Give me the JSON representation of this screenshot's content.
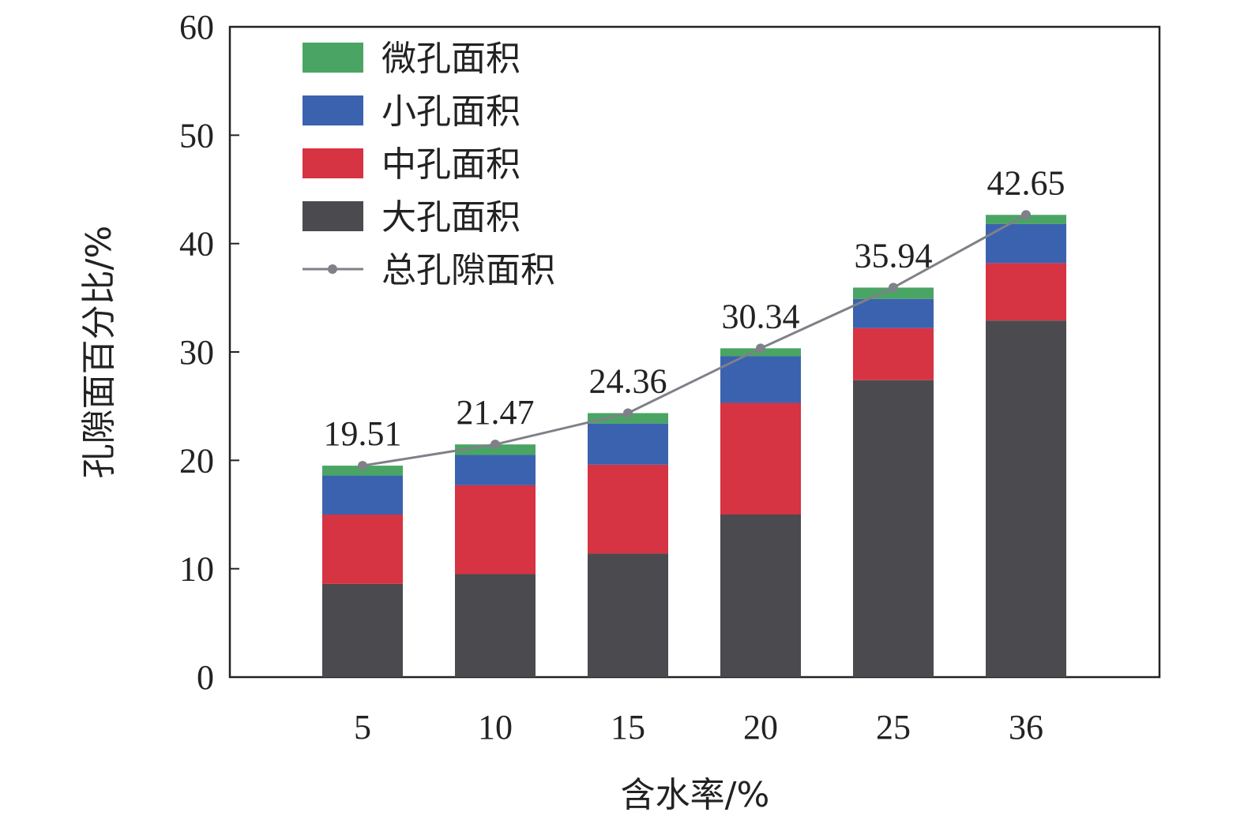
{
  "chart_data": {
    "type": "bar",
    "stacked": true,
    "xlabel": "含水率/%",
    "ylabel": "孔隙面百分比/%",
    "ylim": [
      0,
      60
    ],
    "yticks": [
      "0",
      "10",
      "20",
      "30",
      "40",
      "50",
      "60"
    ],
    "categories": [
      "5",
      "10",
      "15",
      "20",
      "25",
      "36"
    ],
    "series": [
      {
        "name": "大孔面积",
        "color": "#4a4a4f",
        "values": [
          8.6,
          9.5,
          11.4,
          15.0,
          27.4,
          32.9
        ]
      },
      {
        "name": "中孔面积",
        "color": "#d63343",
        "values": [
          6.4,
          8.2,
          8.2,
          10.3,
          4.8,
          5.3
        ]
      },
      {
        "name": "小孔面积",
        "color": "#3b62ae",
        "values": [
          3.6,
          2.8,
          3.8,
          4.3,
          2.7,
          3.6
        ]
      },
      {
        "name": "微孔面积",
        "color": "#4aa564",
        "values": [
          0.91,
          0.97,
          0.96,
          0.74,
          1.04,
          0.85
        ]
      }
    ],
    "line": {
      "name": "总孔隙面积",
      "color": "#7f8088",
      "values": [
        19.51,
        21.47,
        24.36,
        30.34,
        35.94,
        42.65
      ],
      "labels": [
        "19.51",
        "21.47",
        "24.36",
        "30.34",
        "35.94",
        "42.65"
      ]
    },
    "legend_position": "top-left",
    "grid": false
  }
}
